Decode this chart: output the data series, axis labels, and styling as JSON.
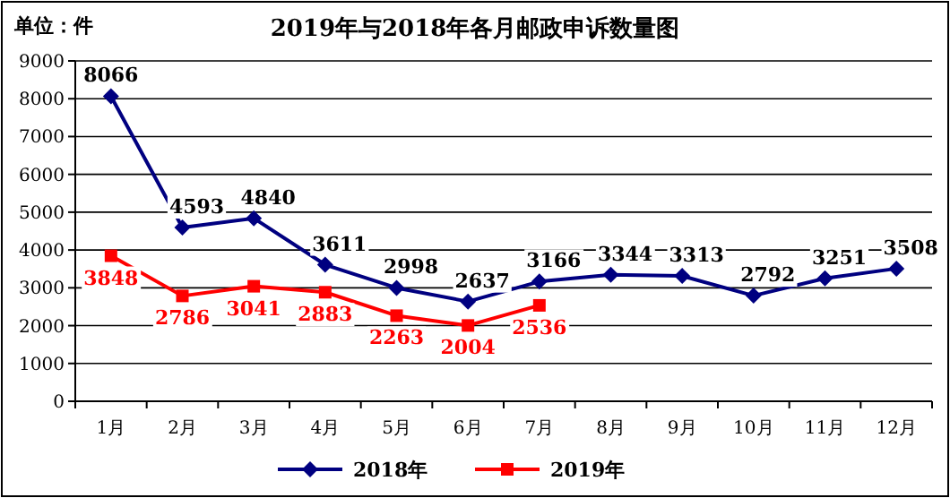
{
  "chart_data": {
    "type": "line",
    "title": "2019年与2018年各月邮政申诉数量图",
    "annotations": [
      "单位：件"
    ],
    "categories": [
      "1月",
      "2月",
      "3月",
      "4月",
      "5月",
      "6月",
      "7月",
      "8月",
      "9月",
      "10月",
      "11月",
      "12月"
    ],
    "series": [
      {
        "name": "2018年",
        "color": "#000080",
        "marker": "diamond",
        "values": [
          8066,
          4593,
          4840,
          3611,
          2998,
          2637,
          3166,
          3344,
          3313,
          2792,
          3251,
          3508
        ]
      },
      {
        "name": "2019年",
        "color": "#ff0000",
        "marker": "square",
        "values": [
          3848,
          2786,
          3041,
          2883,
          2263,
          2004,
          2536,
          null,
          null,
          null,
          null,
          null
        ]
      }
    ],
    "ylim": [
      0,
      9000
    ],
    "yticks": [
      0,
      1000,
      2000,
      3000,
      4000,
      5000,
      6000,
      7000,
      8000,
      9000
    ],
    "grid": "y",
    "legend": "bottom",
    "data_labels": true,
    "line_style": "solid"
  }
}
